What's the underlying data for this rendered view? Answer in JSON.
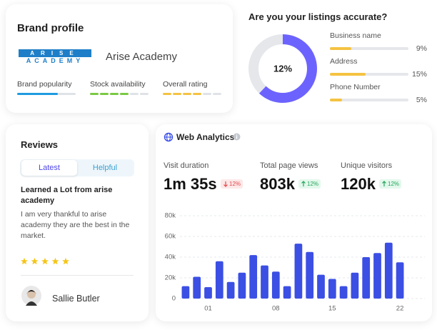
{
  "brand_profile": {
    "title": "Brand profile",
    "logo": {
      "top": "ARISE",
      "bottom": "ACADEMY"
    },
    "name": "Arise Academy",
    "xlim": [
      0,
      100
    ],
    "metrics": [
      {
        "label": "Brand popularity",
        "value": 70,
        "color": "#1e9be0",
        "style": "solid"
      },
      {
        "label": "Stock availability",
        "value": 67,
        "color": "#7ac943",
        "style": "segments"
      },
      {
        "label": "Overall rating",
        "value": 67,
        "color": "#f5c342",
        "style": "segments"
      }
    ]
  },
  "listings": {
    "title": "Are you your listings accurate?",
    "donut": {
      "value": 12,
      "label": "12%",
      "arc": 62,
      "color": "#6c63ff"
    },
    "xlim": [
      0,
      33
    ],
    "color": "#f5c342",
    "items": [
      {
        "label": "Business name",
        "value": 9,
        "value_label": "9%"
      },
      {
        "label": "Address",
        "value": 15,
        "value_label": "15%"
      },
      {
        "label": "Phone Number",
        "value": 5,
        "value_label": "5%"
      }
    ]
  },
  "reviews": {
    "title": "Reviews",
    "tabs": [
      "Latest",
      "Helpful"
    ],
    "heading": "Learned a Lot from arise academy",
    "body": "I am very thankful to arise academy they are the best in the market.",
    "stars": 5,
    "author": "Sallie Butler"
  },
  "web_analytics": {
    "title": "Web Analytics",
    "stats": [
      {
        "label": "Visit duration",
        "value": "1m 35s",
        "change": "12%",
        "direction": "down"
      },
      {
        "label": "Total page views",
        "value": "803k",
        "change": "12%",
        "direction": "up"
      },
      {
        "label": "Unique visitors",
        "value": "120k",
        "change": "12%",
        "direction": "up"
      }
    ],
    "chart_data": {
      "type": "bar",
      "color": "#3b4fe4",
      "grid": true,
      "categories": [
        null,
        null,
        "01",
        null,
        null,
        null,
        null,
        null,
        "08",
        null,
        null,
        null,
        null,
        "15",
        null,
        null,
        null,
        null,
        null,
        "22"
      ],
      "values": [
        12000,
        21000,
        11000,
        36000,
        16000,
        25000,
        42000,
        32000,
        26000,
        12000,
        53000,
        45000,
        23000,
        19000,
        12000,
        25000,
        40000,
        44000,
        54000,
        35000
      ],
      "ylim": [
        0,
        80000
      ],
      "yticks": [
        0,
        {
          "value": 20000,
          "label": "20k"
        },
        {
          "value": 40000,
          "label": "40k"
        },
        {
          "value": 60000,
          "label": "60k"
        },
        {
          "value": 80000,
          "label": "80k"
        }
      ]
    }
  }
}
